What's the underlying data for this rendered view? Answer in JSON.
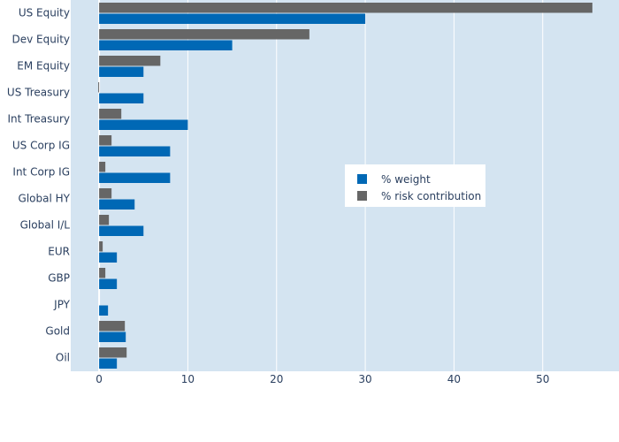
{
  "chart_data": {
    "type": "bar",
    "orientation": "horizontal",
    "categories": [
      "US Equity",
      "Dev Equity",
      "EM Equity",
      "US Treasury",
      "Int Treasury",
      "US Corp IG",
      "Int Corp IG",
      "Global HY",
      "Global I/L",
      "EUR",
      "GBP",
      "JPY",
      "Gold",
      "Oil"
    ],
    "series": [
      {
        "name": "% weight",
        "color": "#0068b5",
        "values": [
          30,
          15,
          5,
          5,
          10,
          8,
          8,
          4,
          5,
          2,
          2,
          1,
          3,
          2
        ]
      },
      {
        "name": "% risk contribution",
        "color": "#666666",
        "values": [
          55.6,
          23.7,
          6.9,
          -0.1,
          2.5,
          1.4,
          0.7,
          1.4,
          1.1,
          0.4,
          0.7,
          0,
          2.9,
          3.1
        ]
      }
    ],
    "xlim": [
      -3.2,
      58.6
    ],
    "xticks": [
      0,
      10,
      20,
      30,
      40,
      50
    ],
    "grid": true,
    "legend_position": "center-right",
    "plot_background": "#d4e4f1",
    "gridline_color": "#ffffff",
    "title": "",
    "xlabel": "",
    "ylabel": ""
  }
}
